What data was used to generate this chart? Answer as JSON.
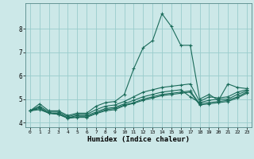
{
  "title": "",
  "xlabel": "Humidex (Indice chaleur)",
  "ylabel": "",
  "bg_color": "#cce8e8",
  "grid_color": "#99cccc",
  "line_color": "#1a6b5a",
  "xlim": [
    -0.5,
    23.5
  ],
  "ylim": [
    3.8,
    9.1
  ],
  "yticks": [
    4,
    5,
    6,
    7,
    8
  ],
  "xticks": [
    0,
    1,
    2,
    3,
    4,
    5,
    6,
    7,
    8,
    9,
    10,
    11,
    12,
    13,
    14,
    15,
    16,
    17,
    18,
    19,
    20,
    21,
    22,
    23
  ],
  "lines": [
    {
      "x": [
        0,
        1,
        2,
        3,
        4,
        5,
        6,
        7,
        8,
        9,
        10,
        11,
        12,
        13,
        14,
        15,
        16,
        17,
        18,
        19,
        20,
        21,
        22,
        23
      ],
      "y": [
        4.5,
        4.8,
        4.5,
        4.5,
        4.3,
        4.4,
        4.4,
        4.7,
        4.85,
        4.9,
        5.2,
        6.3,
        7.2,
        7.5,
        8.65,
        8.1,
        7.3,
        7.3,
        5.0,
        5.2,
        4.95,
        5.65,
        5.5,
        5.45
      ]
    },
    {
      "x": [
        0,
        1,
        2,
        3,
        4,
        5,
        6,
        7,
        8,
        9,
        10,
        11,
        12,
        13,
        14,
        15,
        16,
        17,
        18,
        19,
        20,
        21,
        22,
        23
      ],
      "y": [
        4.5,
        4.7,
        4.45,
        4.45,
        4.25,
        4.35,
        4.35,
        4.55,
        4.7,
        4.75,
        4.9,
        5.1,
        5.3,
        5.4,
        5.5,
        5.55,
        5.6,
        5.65,
        4.9,
        5.1,
        5.05,
        5.1,
        5.3,
        5.4
      ]
    },
    {
      "x": [
        0,
        1,
        2,
        3,
        4,
        5,
        6,
        7,
        8,
        9,
        10,
        11,
        12,
        13,
        14,
        15,
        16,
        17,
        18,
        19,
        20,
        21,
        22,
        23
      ],
      "y": [
        4.5,
        4.65,
        4.4,
        4.4,
        4.2,
        4.3,
        4.3,
        4.45,
        4.6,
        4.65,
        4.8,
        4.95,
        5.1,
        5.2,
        5.3,
        5.35,
        5.4,
        5.1,
        4.85,
        4.95,
        5.0,
        5.0,
        5.2,
        5.35
      ]
    },
    {
      "x": [
        0,
        1,
        2,
        3,
        4,
        5,
        6,
        7,
        8,
        9,
        10,
        11,
        12,
        13,
        14,
        15,
        16,
        17,
        18,
        19,
        20,
        21,
        22,
        23
      ],
      "y": [
        4.5,
        4.6,
        4.4,
        4.35,
        4.2,
        4.25,
        4.25,
        4.4,
        4.55,
        4.6,
        4.75,
        4.85,
        5.0,
        5.1,
        5.2,
        5.25,
        5.3,
        5.35,
        4.8,
        4.85,
        4.9,
        4.95,
        5.1,
        5.3
      ]
    },
    {
      "x": [
        0,
        1,
        2,
        3,
        4,
        5,
        6,
        7,
        8,
        9,
        10,
        11,
        12,
        13,
        14,
        15,
        16,
        17,
        18,
        19,
        20,
        21,
        22,
        23
      ],
      "y": [
        4.5,
        4.55,
        4.4,
        4.35,
        4.18,
        4.22,
        4.22,
        4.38,
        4.5,
        4.55,
        4.72,
        4.82,
        4.95,
        5.05,
        5.15,
        5.2,
        5.25,
        5.3,
        4.75,
        4.8,
        4.85,
        4.9,
        5.05,
        5.25
      ]
    }
  ]
}
